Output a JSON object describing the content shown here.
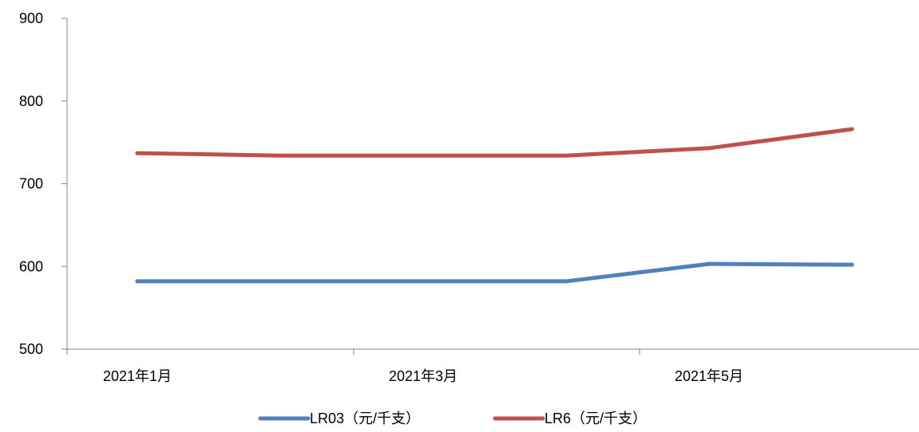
{
  "chart_data": {
    "type": "line",
    "title": "",
    "xlabel": "",
    "ylabel": "",
    "x": [
      "2021-01",
      "2021-02",
      "2021-03",
      "2021-04",
      "2021-05",
      "2021-06"
    ],
    "x_tick_labels": [
      "2021年1月",
      "2021年3月",
      "2021年5月"
    ],
    "ylim": [
      500,
      900
    ],
    "y_ticks": [
      "500",
      "600",
      "700",
      "800",
      "900"
    ],
    "grid": false,
    "legend_position": "bottom",
    "series": [
      {
        "name": "LR03（元/千支）",
        "color": "#4F81BD",
        "values": [
          582,
          582,
          582,
          582,
          603,
          602
        ]
      },
      {
        "name": "LR6（元/千支）",
        "color": "#C0504D",
        "values": [
          737,
          734,
          734,
          734,
          743,
          766
        ]
      }
    ]
  }
}
